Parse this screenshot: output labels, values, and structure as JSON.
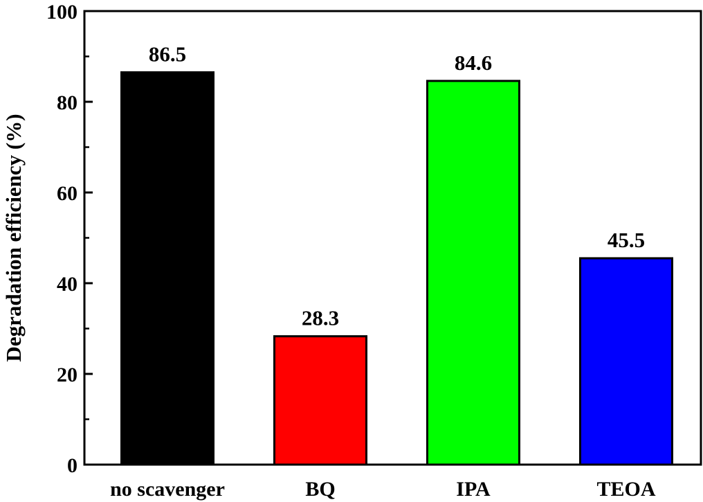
{
  "chart_data": {
    "type": "bar",
    "categories": [
      "no scavenger",
      "BQ",
      "IPA",
      "TEOA"
    ],
    "values": [
      86.5,
      28.3,
      84.6,
      45.5
    ],
    "data_labels": [
      "86.5",
      "28.3",
      "84.6",
      "45.5"
    ],
    "colors": [
      "#000000",
      "#ff0000",
      "#00ff00",
      "#0000ff"
    ],
    "title": "",
    "xlabel": "",
    "ylabel": "Degradation efficiency (%)",
    "ylim": [
      0,
      100
    ],
    "yticks": [
      0,
      20,
      40,
      60,
      80,
      100
    ],
    "ytick_labels": [
      "0",
      "20",
      "40",
      "60",
      "80",
      "100"
    ],
    "grid": false,
    "legend": "none"
  }
}
